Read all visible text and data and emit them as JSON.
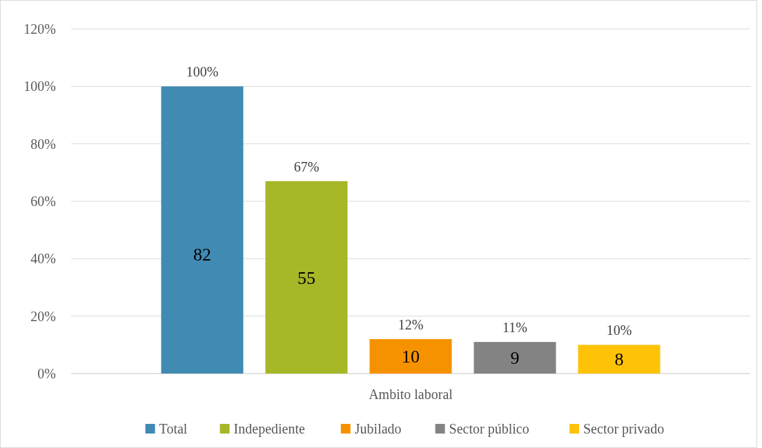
{
  "chart_data": {
    "type": "bar",
    "categories": [
      "Ambito laboral"
    ],
    "series": [
      {
        "name": "Total",
        "color": "#418ab3",
        "values": [
          100
        ],
        "value_labels": [
          "100%"
        ]
      },
      {
        "name": "Indepediente",
        "color": "#a6b727",
        "values": [
          67
        ],
        "value_labels": [
          "67%"
        ]
      },
      {
        "name": "Jubilado",
        "color": "#f69200",
        "values": [
          12
        ],
        "value_labels": [
          "12%"
        ]
      },
      {
        "name": "Sector público",
        "color": "#838383",
        "values": [
          11
        ],
        "value_labels": [
          "11%"
        ]
      },
      {
        "name": "Sector privado",
        "color": "#fec306",
        "values": [
          10
        ],
        "value_labels": [
          "10%"
        ]
      }
    ],
    "ylim": [
      0,
      120
    ],
    "yticks": [
      {
        "value": 0,
        "label": "0%"
      },
      {
        "value": 20,
        "label": "20%"
      },
      {
        "value": 40,
        "label": "40%"
      },
      {
        "value": 60,
        "label": "60%"
      },
      {
        "value": 80,
        "label": "80%"
      },
      {
        "value": 100,
        "label": "100%"
      },
      {
        "value": 120,
        "label": "120%"
      }
    ],
    "annotations": [
      "82",
      "55",
      "10",
      "9",
      "8"
    ],
    "grid": "y",
    "legend": "bottom"
  }
}
